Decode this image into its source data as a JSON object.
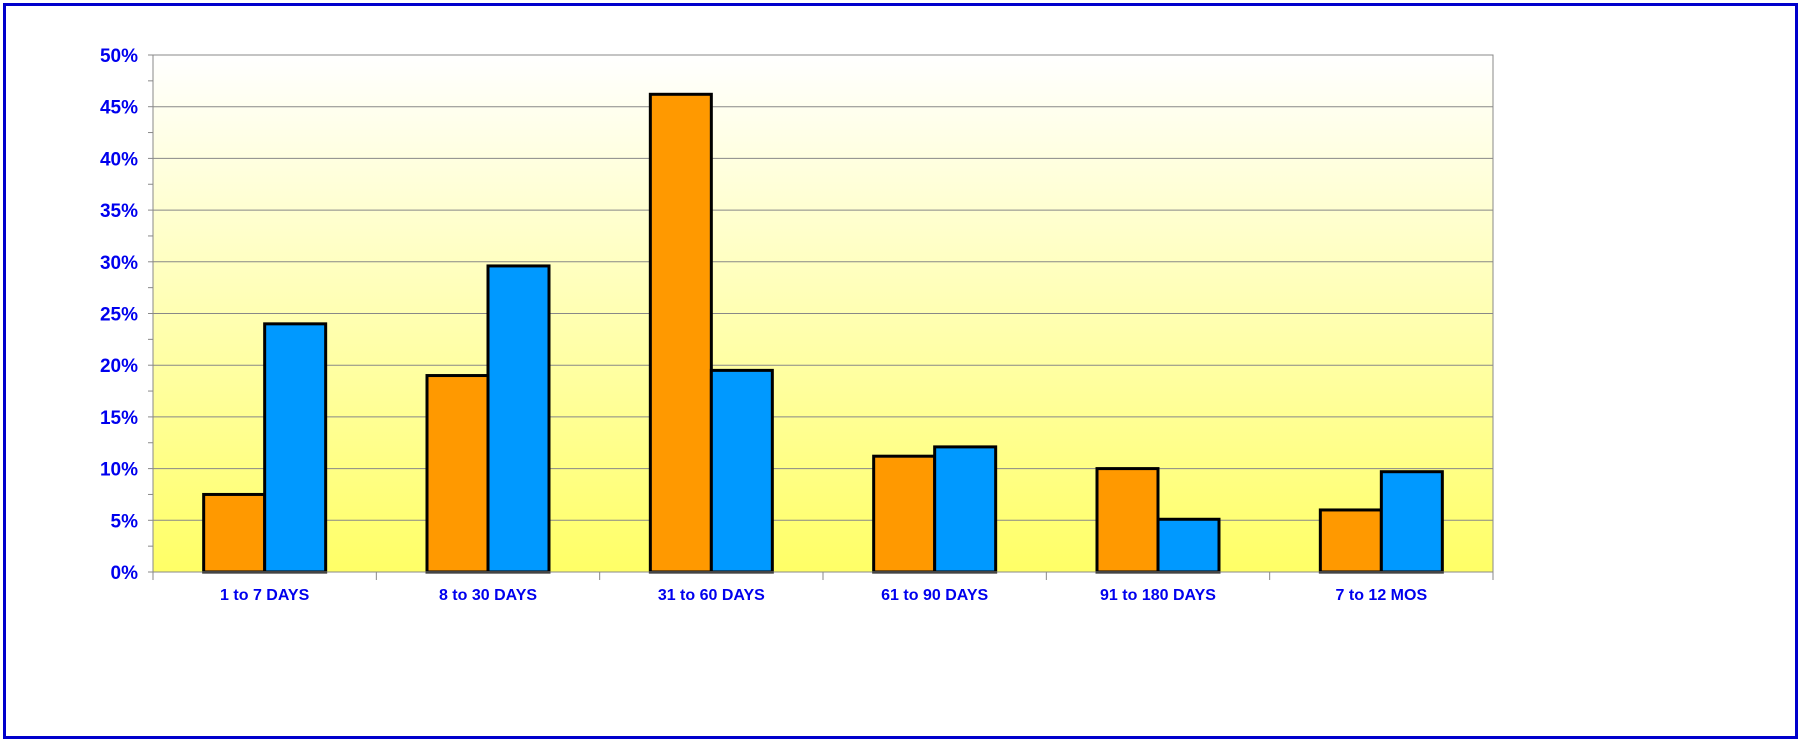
{
  "chart_data": {
    "type": "bar",
    "title": "",
    "xlabel": "",
    "ylabel": "",
    "categories": [
      "1 to 7 DAYS",
      "8 to 30 DAYS",
      "31 to 60 DAYS",
      "61 to 90 DAYS",
      "91 to 180 DAYS",
      "7 to 12 MOS"
    ],
    "series": [
      {
        "values": [
          7.5,
          19.0,
          46.2,
          11.2,
          10.0,
          6.0
        ],
        "color": "#ff9900"
      },
      {
        "values": [
          24.0,
          29.6,
          19.5,
          12.1,
          5.1,
          9.7
        ],
        "color": "#0099ff"
      }
    ],
    "ylim": [
      0,
      50
    ],
    "yticks": [
      0,
      5,
      10,
      15,
      20,
      25,
      30,
      35,
      40,
      45,
      50
    ],
    "ytick_labels": [
      "0%",
      "5%",
      "10%",
      "15%",
      "20%",
      "25%",
      "30%",
      "35%",
      "40%",
      "45%",
      "50%"
    ],
    "grid": true,
    "legend": "none",
    "colors": {
      "frame_border": "#0000cc",
      "label_text": "#0000ee",
      "plot_bg_top": "#ffffff",
      "plot_bg_bottom": "#ffff66",
      "grid": "#888888",
      "bar_outline": "#000000"
    }
  }
}
